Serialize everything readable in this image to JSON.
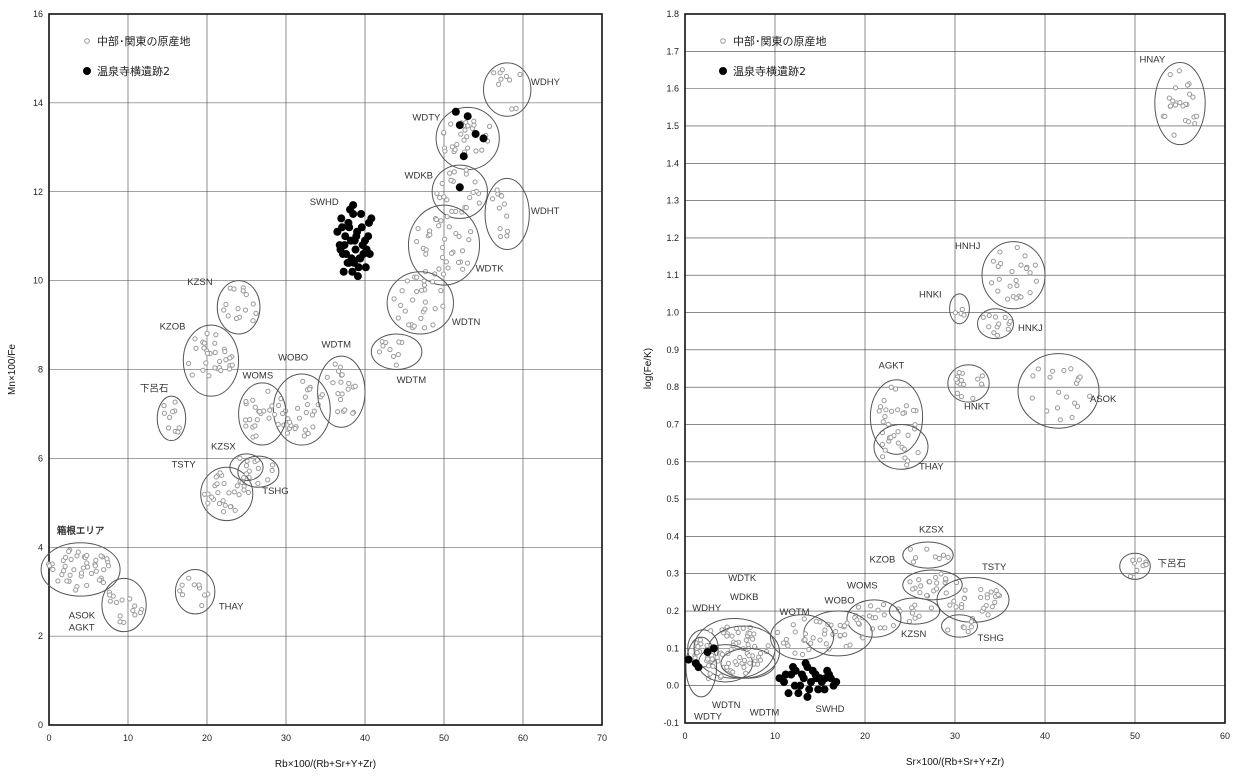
{
  "chart_data": [
    {
      "type": "scatter",
      "xlabel": "Rb×100/(Rb+Sr+Y+Zr)",
      "ylabel": "Mn×100/Fe",
      "xlim": [
        0,
        70
      ],
      "ylim": [
        0,
        16
      ],
      "x_ticks": [
        0,
        10,
        20,
        30,
        40,
        50,
        60,
        70
      ],
      "y_ticks": [
        0,
        2,
        4,
        6,
        8,
        10,
        12,
        14,
        16
      ],
      "grid": true,
      "legend_position": "top-left",
      "legend": [
        {
          "label": "中部･関東の原産地",
          "marker": "gray-circle"
        },
        {
          "label": "温泉寺横遺跡2",
          "marker": "black-dot"
        }
      ],
      "annotations": [
        {
          "text": "箱根エリア",
          "x": 1,
          "y": 4.3
        }
      ],
      "clusters": [
        {
          "name": "WDHY",
          "cx": 58,
          "cy": 14.3,
          "rx": 3,
          "ry": 0.6,
          "rot": 0,
          "n": 10,
          "lx": 61,
          "ly": 14.4
        },
        {
          "name": "WDTY",
          "cx": 53,
          "cy": 13.2,
          "rx": 4,
          "ry": 0.7,
          "rot": 0,
          "n": 28,
          "lx": 46,
          "ly": 13.6
        },
        {
          "name": "WDKB",
          "cx": 52,
          "cy": 12.0,
          "rx": 3.5,
          "ry": 0.6,
          "rot": 0,
          "n": 22,
          "lx": 45,
          "ly": 12.3
        },
        {
          "name": "WDHT",
          "cx": 58,
          "cy": 11.5,
          "rx": 2.8,
          "ry": 0.8,
          "rot": 0,
          "n": 12,
          "lx": 61,
          "ly": 11.5
        },
        {
          "name": "WDTK",
          "cx": 50,
          "cy": 10.8,
          "rx": 4.5,
          "ry": 0.9,
          "rot": 0,
          "n": 35,
          "lx": 54,
          "ly": 10.2
        },
        {
          "name": "WDTN",
          "cx": 47,
          "cy": 9.5,
          "rx": 4.2,
          "ry": 0.7,
          "rot": 0,
          "n": 28,
          "lx": 51,
          "ly": 9.0
        },
        {
          "name": "WDTM",
          "cx": 44,
          "cy": 8.4,
          "rx": 3.2,
          "ry": 0.4,
          "rot": 0,
          "n": 10,
          "lx": 44,
          "ly": 7.7
        },
        {
          "name": "KZSN",
          "cx": 24,
          "cy": 9.4,
          "rx": 2.7,
          "ry": 0.6,
          "rot": 0,
          "n": 15,
          "lx": 17.5,
          "ly": 9.9
        },
        {
          "name": "KZOB",
          "cx": 20.5,
          "cy": 8.2,
          "rx": 3.5,
          "ry": 0.8,
          "rot": 0,
          "n": 30,
          "lx": 14,
          "ly": 8.9
        },
        {
          "name": "WOBO",
          "cx": 32,
          "cy": 7.1,
          "rx": 3.6,
          "ry": 0.8,
          "rot": 0,
          "n": 30,
          "lx": 29,
          "ly": 8.2
        },
        {
          "name": "WDTM",
          "cx": 37,
          "cy": 7.5,
          "rx": 3,
          "ry": 0.8,
          "rot": 0,
          "n": 20,
          "lx": 34.5,
          "ly": 8.5
        },
        {
          "name": "WOMS",
          "cx": 27,
          "cy": 7.0,
          "rx": 3,
          "ry": 0.7,
          "rot": 0,
          "n": 22,
          "lx": 24.5,
          "ly": 7.8
        },
        {
          "name": "下呂石",
          "cx": 15.5,
          "cy": 6.9,
          "rx": 1.8,
          "ry": 0.5,
          "rot": 0,
          "n": 10,
          "lx": 11.5,
          "ly": 7.5
        },
        {
          "name": "KZSX",
          "cx": 25,
          "cy": 5.8,
          "rx": 2.1,
          "ry": 0.3,
          "rot": 0,
          "n": 8,
          "lx": 20.5,
          "ly": 6.2
        },
        {
          "name": "TSTY",
          "cx": 22.5,
          "cy": 5.2,
          "rx": 3.3,
          "ry": 0.6,
          "rot": 0,
          "n": 30,
          "lx": 15.5,
          "ly": 5.8
        },
        {
          "name": "TSHG",
          "cx": 26.5,
          "cy": 5.7,
          "rx": 2.6,
          "ry": 0.35,
          "rot": 0,
          "n": 6,
          "lx": 27,
          "ly": 5.2
        },
        {
          "name": "箱根エリア",
          "cx": 4,
          "cy": 3.5,
          "rx": 5,
          "ry": 0.6,
          "rot": 0,
          "n": 45,
          "lx": null,
          "ly": null
        },
        {
          "name": "ASOK\nAGKT",
          "cx": 9.5,
          "cy": 2.7,
          "rx": 2.8,
          "ry": 0.6,
          "rot": 0,
          "n": 15,
          "lx": 2.5,
          "ly": 2.4
        },
        {
          "name": "THAY",
          "cx": 18.5,
          "cy": 3.0,
          "rx": 2.5,
          "ry": 0.5,
          "rot": 0,
          "n": 10,
          "lx": 21.5,
          "ly": 2.6
        },
        {
          "name": "SWHD",
          "cx": 39,
          "cy": 11.0,
          "rx": 0,
          "ry": 0,
          "rot": 0,
          "n": 0,
          "lx": 33,
          "ly": 11.7
        }
      ],
      "series": [
        {
          "name": "温泉寺横遺跡2",
          "x": [
            38.5,
            37,
            39.5,
            38,
            40.5,
            37.5,
            39,
            38.2,
            36.8,
            40,
            38.8,
            37.6,
            39.4,
            38.6,
            37.2,
            40.2,
            39.2,
            38.4,
            37.8,
            39.8,
            38.1,
            36.5,
            40.8,
            39.6,
            38.9,
            37.4,
            38.3,
            40.1,
            39.1,
            37.9,
            38.7,
            36.9,
            40.4,
            39.3,
            38,
            37.3,
            39.7,
            38.5,
            37.1,
            40.6,
            51.5,
            52,
            53,
            54,
            55,
            52.5,
            52
          ],
          "y": [
            11.7,
            11.4,
            11.5,
            11.2,
            11.3,
            11.0,
            11.1,
            10.9,
            10.8,
            10.9,
            10.7,
            10.6,
            10.5,
            10.4,
            10.6,
            10.7,
            10.3,
            10.2,
            10.4,
            10.6,
            11.6,
            11.1,
            11.4,
            11.2,
            11.0,
            10.8,
            10.5,
            10.3,
            10.1,
            11.3,
            10.9,
            10.7,
            11.0,
            10.5,
            10.4,
            10.2,
            10.8,
            11.5,
            11.2,
            10.6,
            13.8,
            13.5,
            13.7,
            13.3,
            13.2,
            12.8,
            12.1
          ]
        }
      ]
    },
    {
      "type": "scatter",
      "xlabel": "Sr×100/(Rb+Sr+Y+Zr)",
      "ylabel": "log(Fe/K)",
      "xlim": [
        0,
        60
      ],
      "ylim": [
        -0.1,
        1.8
      ],
      "x_ticks": [
        0,
        10,
        20,
        30,
        40,
        50,
        60
      ],
      "y_ticks": [
        -0.1,
        0.0,
        0.1,
        0.2,
        0.3,
        0.4,
        0.5,
        0.6,
        0.7,
        0.8,
        0.9,
        1.0,
        1.1,
        1.2,
        1.3,
        1.4,
        1.5,
        1.6,
        1.7,
        1.8
      ],
      "grid": true,
      "legend_position": "top-left",
      "legend": [
        {
          "label": "中部･関東の原産地",
          "marker": "gray-circle"
        },
        {
          "label": "温泉寺横遺跡2",
          "marker": "black-dot"
        }
      ],
      "clusters": [
        {
          "name": "HNAY",
          "cx": 55,
          "cy": 1.56,
          "rx": 2.8,
          "ry": 0.11,
          "rot": 0,
          "n": 25,
          "lx": 50.5,
          "ly": 1.67
        },
        {
          "name": "HNHJ",
          "cx": 36.5,
          "cy": 1.1,
          "rx": 3.5,
          "ry": 0.09,
          "rot": 0,
          "n": 25,
          "lx": 30,
          "ly": 1.17
        },
        {
          "name": "HNKI",
          "cx": 30.5,
          "cy": 1.01,
          "rx": 1.1,
          "ry": 0.04,
          "rot": 0,
          "n": 4,
          "lx": 26,
          "ly": 1.04
        },
        {
          "name": "HNKJ",
          "cx": 34.5,
          "cy": 0.97,
          "rx": 2,
          "ry": 0.04,
          "rot": 0,
          "n": 12,
          "lx": 37,
          "ly": 0.95
        },
        {
          "name": "AGKT",
          "cx": 23.5,
          "cy": 0.72,
          "rx": 2.9,
          "ry": 0.1,
          "rot": 0,
          "n": 20,
          "lx": 21.5,
          "ly": 0.85
        },
        {
          "name": "THAY",
          "cx": 24,
          "cy": 0.64,
          "rx": 3,
          "ry": 0.06,
          "rot": 0,
          "n": 15,
          "lx": 26,
          "ly": 0.58
        },
        {
          "name": "HNKT",
          "cx": 31.5,
          "cy": 0.81,
          "rx": 2.3,
          "ry": 0.05,
          "rot": 0,
          "n": 15,
          "lx": 31,
          "ly": 0.74
        },
        {
          "name": "ASOK",
          "cx": 41.5,
          "cy": 0.79,
          "rx": 4.5,
          "ry": 0.1,
          "rot": 0,
          "n": 20,
          "lx": 45,
          "ly": 0.76
        },
        {
          "name": "KZSX",
          "cx": 27,
          "cy": 0.35,
          "rx": 2.8,
          "ry": 0.035,
          "rot": 0,
          "n": 8,
          "lx": 26,
          "ly": 0.41
        },
        {
          "name": "KZOB",
          "cx": 27.5,
          "cy": 0.27,
          "rx": 3.3,
          "ry": 0.04,
          "rot": 0,
          "n": 20,
          "lx": 20.5,
          "ly": 0.33
        },
        {
          "name": "TSTY",
          "cx": 32,
          "cy": 0.23,
          "rx": 4,
          "ry": 0.06,
          "rot": 0,
          "n": 25,
          "lx": 33,
          "ly": 0.31
        },
        {
          "name": "TSHG",
          "cx": 30.5,
          "cy": 0.16,
          "rx": 2,
          "ry": 0.03,
          "rot": 0,
          "n": 6,
          "lx": 32.5,
          "ly": 0.12
        },
        {
          "name": "KZSN",
          "cx": 25.5,
          "cy": 0.2,
          "rx": 2.8,
          "ry": 0.035,
          "rot": 0,
          "n": 10,
          "lx": 24,
          "ly": 0.13
        },
        {
          "name": "WOMS",
          "cx": 21,
          "cy": 0.18,
          "rx": 3,
          "ry": 0.05,
          "rot": 0,
          "n": 15,
          "lx": 18,
          "ly": 0.26
        },
        {
          "name": "WOBO",
          "cx": 17,
          "cy": 0.14,
          "rx": 3.8,
          "ry": 0.06,
          "rot": 0,
          "n": 22,
          "lx": 15.5,
          "ly": 0.22
        },
        {
          "name": "WOTM",
          "cx": 13,
          "cy": 0.13,
          "rx": 3.5,
          "ry": 0.06,
          "rot": 0,
          "n": 20,
          "lx": 10.5,
          "ly": 0.19
        },
        {
          "name": "下呂石",
          "cx": 50,
          "cy": 0.32,
          "rx": 1.7,
          "ry": 0.035,
          "rot": 0,
          "n": 10,
          "lx": 52.5,
          "ly": 0.32
        },
        {
          "name": "WDHY",
          "cx": 2,
          "cy": 0.1,
          "rx": 1.7,
          "ry": 0.05,
          "rot": 0,
          "n": 10,
          "lx": 0.8,
          "ly": 0.2
        },
        {
          "name": "WDTK",
          "cx": 5.5,
          "cy": 0.1,
          "rx": 4.5,
          "ry": 0.08,
          "rot": 0,
          "n": 30,
          "lx": 4.8,
          "ly": 0.28
        },
        {
          "name": "WDKB",
          "cx": 6.5,
          "cy": 0.09,
          "rx": 4,
          "ry": 0.07,
          "rot": 0,
          "n": 20,
          "lx": 5,
          "ly": 0.23
        },
        {
          "name": "WDTY",
          "cx": 1.8,
          "cy": 0.05,
          "rx": 1.7,
          "ry": 0.08,
          "rot": 0,
          "n": 8,
          "lx": 1,
          "ly": -0.09
        },
        {
          "name": "WDTN",
          "cx": 4.5,
          "cy": 0.06,
          "rx": 3,
          "ry": 0.05,
          "rot": 0,
          "n": 12,
          "lx": 3,
          "ly": -0.06
        },
        {
          "name": "WDTM",
          "cx": 7,
          "cy": 0.06,
          "rx": 3,
          "ry": 0.04,
          "rot": 0,
          "n": 10,
          "lx": 7.2,
          "ly": -0.08
        },
        {
          "name": "SWHD",
          "cx": 14,
          "cy": 0.02,
          "rx": 0,
          "ry": 0,
          "rot": 0,
          "n": 0,
          "lx": 14.5,
          "ly": -0.07
        }
      ],
      "series": [
        {
          "name": "温泉寺横遺跡2",
          "x": [
            0.4,
            1.2,
            2.5,
            3.2,
            1.5,
            10.5,
            11,
            11.8,
            12.3,
            12.8,
            13.2,
            13.6,
            14,
            14.5,
            15,
            15.5,
            16,
            16.5,
            11.5,
            12,
            13,
            13.8,
            14.2,
            15.2,
            16.2,
            11.2,
            12.6,
            14.8,
            15.8,
            13.4,
            12.2,
            14.6,
            16.8,
            13.6,
            15.6
          ],
          "y": [
            0.07,
            0.06,
            0.09,
            0.1,
            0.05,
            0.02,
            0.01,
            0.03,
            0.04,
            0.0,
            0.02,
            0.05,
            0.01,
            0.03,
            0.02,
            -0.01,
            0.03,
            0.0,
            -0.02,
            0.05,
            0.03,
            -0.01,
            0.04,
            0.01,
            0.02,
            0.03,
            -0.02,
            -0.01,
            0.04,
            0.06,
            0.0,
            0.02,
            0.01,
            -0.03,
            0.02
          ]
        }
      ]
    }
  ]
}
